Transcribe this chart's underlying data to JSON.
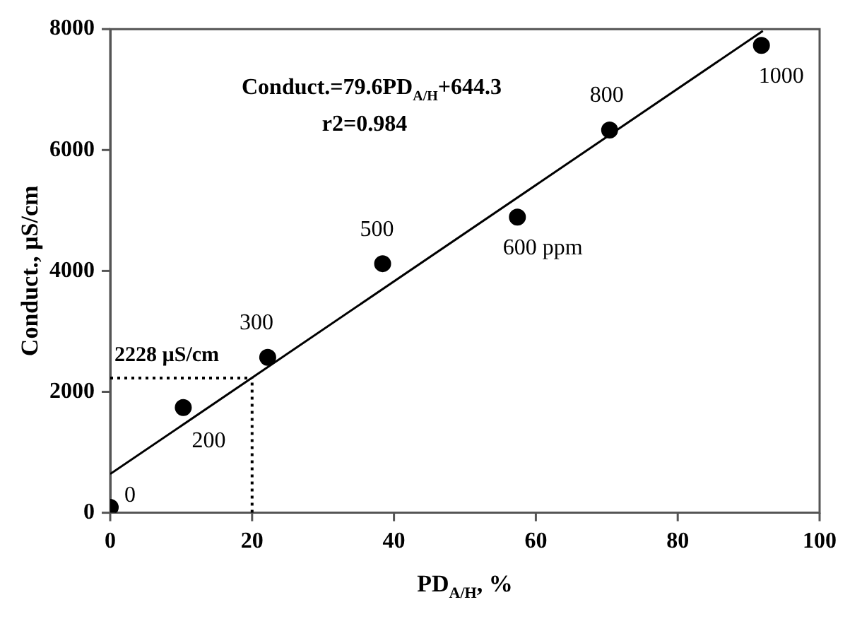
{
  "chart_data": {
    "type": "scatter",
    "xlabel": "PD$_{A/H}$, %",
    "ylabel": "Conduct., µS/cm",
    "xlim": [
      0,
      100
    ],
    "xticks": [
      0,
      20,
      40,
      60,
      80,
      100
    ],
    "ylim": [
      0,
      8000
    ],
    "yticks": [
      0,
      2000,
      4000,
      6000,
      8000
    ],
    "grid": false,
    "legend": false,
    "marker": "circle",
    "series": [
      {
        "color": "#000000",
        "x": [
          0,
          10.3,
          22.2,
          38.4,
          57.4,
          70.4,
          91.8
        ],
        "values": [
          90,
          1740,
          2570,
          4120,
          4890,
          6330,
          7730
        ]
      },
      {
        "type": "line",
        "color": "#000000",
        "x": [
          0,
          92
        ],
        "values": [
          640,
          7970
        ],
        "marker": "none",
        "line_style": "solid"
      }
    ],
    "ref_lines": [
      {
        "axis": "y",
        "value": 2228,
        "label": "2228 µS/cm",
        "line_style": "dotted",
        "color": "#000000"
      },
      {
        "axis": "x",
        "value": 20,
        "line_style": "dotted",
        "color": "#000000"
      }
    ],
    "annotations": [
      "Conduct.=79.6PD$_{A/H}$+644.3",
      "r2=0.984",
      {
        "text": "0",
        "x": 0,
        "y": 90
      },
      {
        "text": "200",
        "x": 10.3,
        "y": 1740
      },
      {
        "text": "300",
        "x": 22.2,
        "y": 2570
      },
      {
        "text": "500",
        "x": 38.4,
        "y": 4120
      },
      {
        "text": "600 ppm",
        "x": 57.4,
        "y": 4890
      },
      {
        "text": "800",
        "x": 70.4,
        "y": 6330
      },
      {
        "text": "1000",
        "x": 91.8,
        "y": 7730
      }
    ]
  }
}
